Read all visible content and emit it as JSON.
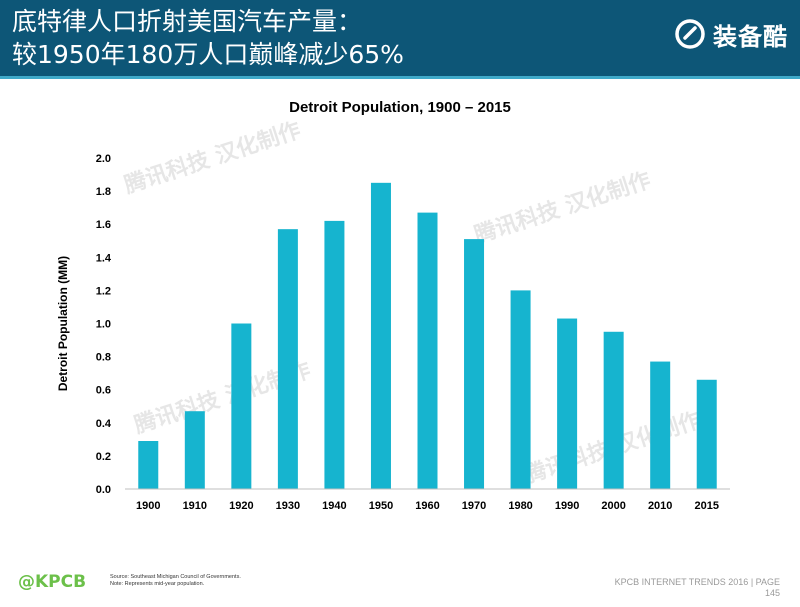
{
  "header": {
    "title_line1": "底特律人口折射美国汽车产量：",
    "title_line2": "较1950年180万人口巅峰减少65%",
    "brand_text": "装备酷",
    "brand_icon": "brand-logo-icon"
  },
  "watermark_text": "腾讯科技 汉化制作",
  "chart_data": {
    "type": "bar",
    "title": "Detroit Population, 1900 – 2015",
    "xlabel": "",
    "ylabel": "Detroit Population (MM)",
    "categories": [
      "1900",
      "1910",
      "1920",
      "1930",
      "1940",
      "1950",
      "1960",
      "1970",
      "1980",
      "1990",
      "2000",
      "2010",
      "2015"
    ],
    "values": [
      0.29,
      0.47,
      1.0,
      1.57,
      1.62,
      1.85,
      1.67,
      1.51,
      1.2,
      1.03,
      0.95,
      0.77,
      0.66
    ],
    "ylim": [
      0,
      2.0
    ],
    "yticks": [
      "0.0",
      "0.2",
      "0.4",
      "0.6",
      "0.8",
      "1.0",
      "1.2",
      "1.4",
      "1.6",
      "1.8",
      "2.0"
    ],
    "grid": false,
    "bar_color": "#16b4cf"
  },
  "footer": {
    "logo": "@KPCB",
    "source_line1": "Source: Southeast Michigan Council of Governments.",
    "source_line2": "Note: Represents mid-year population.",
    "right_line1": "KPCB INTERNET TRENDS 2016  |  PAGE",
    "right_line2": "145"
  }
}
